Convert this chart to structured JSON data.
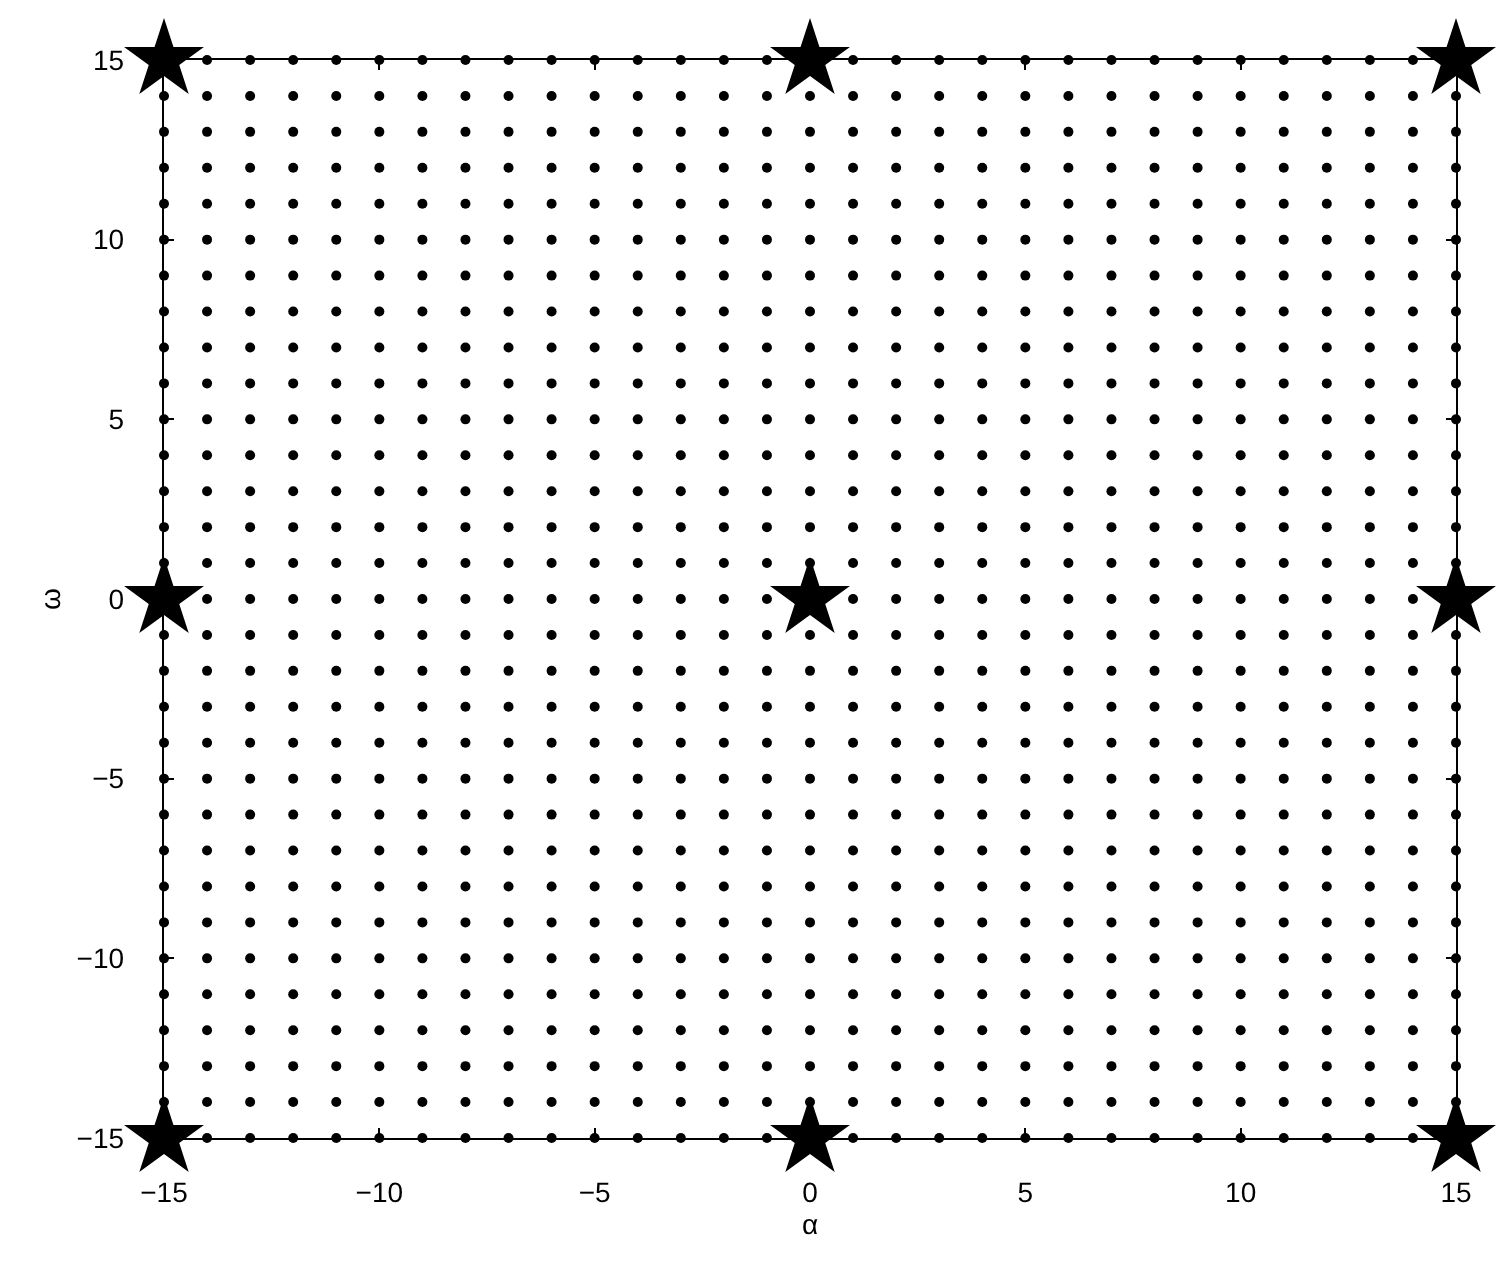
{
  "chart_data": {
    "type": "scatter",
    "xlabel": "α",
    "ylabel": "ω",
    "xlim": [
      -15,
      15
    ],
    "ylim": [
      -15,
      15
    ],
    "xticks": [
      -15,
      -10,
      -5,
      0,
      5,
      10,
      15
    ],
    "yticks": [
      -15,
      -10,
      -5,
      0,
      5,
      10,
      15
    ],
    "series": [
      {
        "marker": "circle",
        "color": "#000000",
        "x": [
          null,
          -14,
          -13,
          -12,
          -11,
          -10,
          -9,
          -8,
          -7,
          -6,
          -5,
          -4,
          -3,
          -2,
          -1,
          null,
          1,
          2,
          3,
          4,
          5,
          6,
          7,
          8,
          9,
          10,
          11,
          12,
          13,
          14,
          null,
          -15,
          -14,
          -13,
          -12,
          -11,
          -10,
          -9,
          -8,
          -7,
          -6,
          -5,
          -4,
          -3,
          -2,
          -1,
          0,
          1,
          2,
          3,
          4,
          5,
          6,
          7,
          8,
          9,
          10,
          11,
          12,
          13,
          14,
          15,
          -15,
          -14,
          -13,
          -12,
          -11,
          -10,
          -9,
          -8,
          -7,
          -6,
          -5,
          -4,
          -3,
          -2,
          -1,
          0,
          1,
          2,
          3,
          4,
          5,
          6,
          7,
          8,
          9,
          10,
          11,
          12,
          13,
          14,
          15,
          -15,
          -14,
          -13,
          -12,
          -11,
          -10,
          -9,
          -8,
          -7,
          -6,
          -5,
          -4,
          -3,
          -2,
          -1,
          0,
          1,
          2,
          3,
          4,
          5,
          6,
          7,
          8,
          9,
          10,
          11,
          12,
          13,
          14,
          15,
          -15,
          -14,
          -13,
          -12,
          -11,
          -10,
          -9,
          -8,
          -7,
          -6,
          -5,
          -4,
          -3,
          -2,
          -1,
          0,
          1,
          2,
          3,
          4,
          5,
          6,
          7,
          8,
          9,
          10,
          11,
          12,
          13,
          14,
          15,
          -15,
          -14,
          -13,
          -12,
          -11,
          -10,
          -9,
          -8,
          -7,
          -6,
          -5,
          -4,
          -3,
          -2,
          -1,
          0,
          1,
          2,
          3,
          4,
          5,
          6,
          7,
          8,
          9,
          10,
          11,
          12,
          13,
          14,
          15,
          -15,
          -14,
          -13,
          -12,
          -11,
          -10,
          -9,
          -8,
          -7,
          -6,
          -5,
          -4,
          -3,
          -2,
          -1,
          0,
          1,
          2,
          3,
          4,
          5,
          6,
          7,
          8,
          9,
          10,
          11,
          12,
          13,
          14,
          15,
          -15,
          -14,
          -13,
          -12,
          -11,
          -10,
          -9,
          -8,
          -7,
          -6,
          -5,
          -4,
          -3,
          -2,
          -1,
          0,
          1,
          2,
          3,
          4,
          5,
          6,
          7,
          8,
          9,
          10,
          11,
          12,
          13,
          14,
          15,
          -15,
          -14,
          -13,
          -12,
          -11,
          -10,
          -9,
          -8,
          -7,
          -6,
          -5,
          -4,
          -3,
          -2,
          -1,
          0,
          1,
          2,
          3,
          4,
          5,
          6,
          7,
          8,
          9,
          10,
          11,
          12,
          13,
          14,
          15,
          -15,
          -14,
          -13,
          -12,
          -11,
          -10,
          -9,
          -8,
          -7,
          -6,
          -5,
          -4,
          -3,
          -2,
          -1,
          0,
          1,
          2,
          3,
          4,
          5,
          6,
          7,
          8,
          9,
          10,
          11,
          12,
          13,
          14,
          15,
          -15,
          -14,
          -13,
          -12,
          -11,
          -10,
          -9,
          -8,
          -7,
          -6,
          -5,
          -4,
          -3,
          -2,
          -1,
          0,
          1,
          2,
          3,
          4,
          5,
          6,
          7,
          8,
          9,
          10,
          11,
          12,
          13,
          14,
          15,
          -15,
          -14,
          -13,
          -12,
          -11,
          -10,
          -9,
          -8,
          -7,
          -6,
          -5,
          -4,
          -3,
          -2,
          -1,
          0,
          1,
          2,
          3,
          4,
          5,
          6,
          7,
          8,
          9,
          10,
          11,
          12,
          13,
          14,
          15,
          -15,
          -14,
          -13,
          -12,
          -11,
          -10,
          -9,
          -8,
          -7,
          -6,
          -5,
          -4,
          -3,
          -2,
          -1,
          0,
          1,
          2,
          3,
          4,
          5,
          6,
          7,
          8,
          9,
          10,
          11,
          12,
          13,
          14,
          15,
          -15,
          -14,
          -13,
          -12,
          -11,
          -10,
          -9,
          -8,
          -7,
          -6,
          -5,
          -4,
          -3,
          -2,
          -1,
          0,
          1,
          2,
          3,
          4,
          5,
          6,
          7,
          8,
          9,
          10,
          11,
          12,
          13,
          14,
          15,
          -15,
          -14,
          -13,
          -12,
          -11,
          -10,
          -9,
          -8,
          -7,
          -6,
          -5,
          -4,
          -3,
          -2,
          -1,
          0,
          1,
          2,
          3,
          4,
          5,
          6,
          7,
          8,
          9,
          10,
          11,
          12,
          13,
          14,
          15,
          null,
          -14,
          -13,
          -12,
          -11,
          -10,
          -9,
          -8,
          -7,
          -6,
          -5,
          -4,
          -3,
          -2,
          -1,
          null,
          1,
          2,
          3,
          4,
          5,
          6,
          7,
          8,
          9,
          10,
          11,
          12,
          13,
          14,
          null,
          -15,
          -14,
          -13,
          -12,
          -11,
          -10,
          -9,
          -8,
          -7,
          -6,
          -5,
          -4,
          -3,
          -2,
          -1,
          0,
          1,
          2,
          3,
          4,
          5,
          6,
          7,
          8,
          9,
          10,
          11,
          12,
          13,
          14,
          15,
          -15,
          -14,
          -13,
          -12,
          -11,
          -10,
          -9,
          -8,
          -7,
          -6,
          -5,
          -4,
          -3,
          -2,
          -1,
          0,
          1,
          2,
          3,
          4,
          5,
          6,
          7,
          8,
          9,
          10,
          11,
          12,
          13,
          14,
          15,
          -15,
          -14,
          -13,
          -12,
          -11,
          -10,
          -9,
          -8,
          -7,
          -6,
          -5,
          -4,
          -3,
          -2,
          -1,
          0,
          1,
          2,
          3,
          4,
          5,
          6,
          7,
          8,
          9,
          10,
          11,
          12,
          13,
          14,
          15,
          -15,
          -14,
          -13,
          -12,
          -11,
          -10,
          -9,
          -8,
          -7,
          -6,
          -5,
          -4,
          -3,
          -2,
          -1,
          0,
          1,
          2,
          3,
          4,
          5,
          6,
          7,
          8,
          9,
          10,
          11,
          12,
          13,
          14,
          15,
          -15,
          -14,
          -13,
          -12,
          -11,
          -10,
          -9,
          -8,
          -7,
          -6,
          -5,
          -4,
          -3,
          -2,
          -1,
          0,
          1,
          2,
          3,
          4,
          5,
          6,
          7,
          8,
          9,
          10,
          11,
          12,
          13,
          14,
          15,
          -15,
          -14,
          -13,
          -12,
          -11,
          -10,
          -9,
          -8,
          -7,
          -6,
          -5,
          -4,
          -3,
          -2,
          -1,
          0,
          1,
          2,
          3,
          4,
          5,
          6,
          7,
          8,
          9,
          10,
          11,
          12,
          13,
          14,
          15,
          -15,
          -14,
          -13,
          -12,
          -11,
          -10,
          -9,
          -8,
          -7,
          -6,
          -5,
          -4,
          -3,
          -2,
          -1,
          0,
          1,
          2,
          3,
          4,
          5,
          6,
          7,
          8,
          9,
          10,
          11,
          12,
          13,
          14,
          15,
          -15,
          -14,
          -13,
          -12,
          -11,
          -10,
          -9,
          -8,
          -7,
          -6,
          -5,
          -4,
          -3,
          -2,
          -1,
          0,
          1,
          2,
          3,
          4,
          5,
          6,
          7,
          8,
          9,
          10,
          11,
          12,
          13,
          14,
          15,
          -15,
          -14,
          -13,
          -12,
          -11,
          -10,
          -9,
          -8,
          -7,
          -6,
          -5,
          -4,
          -3,
          -2,
          -1,
          0,
          1,
          2,
          3,
          4,
          5,
          6,
          7,
          8,
          9,
          10,
          11,
          12,
          13,
          14,
          15,
          -15,
          -14,
          -13,
          -12,
          -11,
          -10,
          -9,
          -8,
          -7,
          -6,
          -5,
          -4,
          -3,
          -2,
          -1,
          0,
          1,
          2,
          3,
          4,
          5,
          6,
          7,
          8,
          9,
          10,
          11,
          12,
          13,
          14,
          15,
          -15,
          -14,
          -13,
          -12,
          -11,
          -10,
          -9,
          -8,
          -7,
          -6,
          -5,
          -4,
          -3,
          -2,
          -1,
          0,
          1,
          2,
          3,
          4,
          5,
          6,
          7,
          8,
          9,
          10,
          11,
          12,
          13,
          14,
          15,
          -15,
          -14,
          -13,
          -12,
          -11,
          -10,
          -9,
          -8,
          -7,
          -6,
          -5,
          -4,
          -3,
          -2,
          -1,
          0,
          1,
          2,
          3,
          4,
          5,
          6,
          7,
          8,
          9,
          10,
          11,
          12,
          13,
          14,
          15,
          -15,
          -14,
          -13,
          -12,
          -11,
          -10,
          -9,
          -8,
          -7,
          -6,
          -5,
          -4,
          -3,
          -2,
          -1,
          0,
          1,
          2,
          3,
          4,
          5,
          6,
          7,
          8,
          9,
          10,
          11,
          12,
          13,
          14,
          15,
          -15,
          -14,
          -13,
          -12,
          -11,
          -10,
          -9,
          -8,
          -7,
          -6,
          -5,
          -4,
          -3,
          -2,
          -1,
          0,
          1,
          2,
          3,
          4,
          5,
          6,
          7,
          8,
          9,
          10,
          11,
          12,
          13,
          14,
          15,
          null,
          -14,
          -13,
          -12,
          -11,
          -10,
          -9,
          -8,
          -7,
          -6,
          -5,
          -4,
          -3,
          -2,
          -1,
          null,
          1,
          2,
          3,
          4,
          5,
          6,
          7,
          8,
          9,
          10,
          11,
          12,
          13,
          14,
          null
        ],
        "values": [
          null,
          15,
          15,
          15,
          15,
          15,
          15,
          15,
          15,
          15,
          15,
          15,
          15,
          15,
          15,
          null,
          15,
          15,
          15,
          15,
          15,
          15,
          15,
          15,
          15,
          15,
          15,
          15,
          15,
          15,
          null,
          14,
          14,
          14,
          14,
          14,
          14,
          14,
          14,
          14,
          14,
          14,
          14,
          14,
          14,
          14,
          14,
          14,
          14,
          14,
          14,
          14,
          14,
          14,
          14,
          14,
          14,
          14,
          14,
          14,
          14,
          14,
          13,
          13,
          13,
          13,
          13,
          13,
          13,
          13,
          13,
          13,
          13,
          13,
          13,
          13,
          13,
          13,
          13,
          13,
          13,
          13,
          13,
          13,
          13,
          13,
          13,
          13,
          13,
          13,
          13,
          13,
          13,
          12,
          12,
          12,
          12,
          12,
          12,
          12,
          12,
          12,
          12,
          12,
          12,
          12,
          12,
          12,
          12,
          12,
          12,
          12,
          12,
          12,
          12,
          12,
          12,
          12,
          12,
          12,
          12,
          12,
          12,
          12,
          11,
          11,
          11,
          11,
          11,
          11,
          11,
          11,
          11,
          11,
          11,
          11,
          11,
          11,
          11,
          11,
          11,
          11,
          11,
          11,
          11,
          11,
          11,
          11,
          11,
          11,
          11,
          11,
          11,
          11,
          11,
          10,
          10,
          10,
          10,
          10,
          10,
          10,
          10,
          10,
          10,
          10,
          10,
          10,
          10,
          10,
          10,
          10,
          10,
          10,
          10,
          10,
          10,
          10,
          10,
          10,
          10,
          10,
          10,
          10,
          10,
          10,
          9,
          9,
          9,
          9,
          9,
          9,
          9,
          9,
          9,
          9,
          9,
          9,
          9,
          9,
          9,
          9,
          9,
          9,
          9,
          9,
          9,
          9,
          9,
          9,
          9,
          9,
          9,
          9,
          9,
          9,
          9,
          8,
          8,
          8,
          8,
          8,
          8,
          8,
          8,
          8,
          8,
          8,
          8,
          8,
          8,
          8,
          8,
          8,
          8,
          8,
          8,
          8,
          8,
          8,
          8,
          8,
          8,
          8,
          8,
          8,
          8,
          8,
          7,
          7,
          7,
          7,
          7,
          7,
          7,
          7,
          7,
          7,
          7,
          7,
          7,
          7,
          7,
          7,
          7,
          7,
          7,
          7,
          7,
          7,
          7,
          7,
          7,
          7,
          7,
          7,
          7,
          7,
          7,
          6,
          6,
          6,
          6,
          6,
          6,
          6,
          6,
          6,
          6,
          6,
          6,
          6,
          6,
          6,
          6,
          6,
          6,
          6,
          6,
          6,
          6,
          6,
          6,
          6,
          6,
          6,
          6,
          6,
          6,
          6,
          5,
          5,
          5,
          5,
          5,
          5,
          5,
          5,
          5,
          5,
          5,
          5,
          5,
          5,
          5,
          5,
          5,
          5,
          5,
          5,
          5,
          5,
          5,
          5,
          5,
          5,
          5,
          5,
          5,
          5,
          5,
          4,
          4,
          4,
          4,
          4,
          4,
          4,
          4,
          4,
          4,
          4,
          4,
          4,
          4,
          4,
          4,
          4,
          4,
          4,
          4,
          4,
          4,
          4,
          4,
          4,
          4,
          4,
          4,
          4,
          4,
          4,
          3,
          3,
          3,
          3,
          3,
          3,
          3,
          3,
          3,
          3,
          3,
          3,
          3,
          3,
          3,
          3,
          3,
          3,
          3,
          3,
          3,
          3,
          3,
          3,
          3,
          3,
          3,
          3,
          3,
          3,
          3,
          2,
          2,
          2,
          2,
          2,
          2,
          2,
          2,
          2,
          2,
          2,
          2,
          2,
          2,
          2,
          2,
          2,
          2,
          2,
          2,
          2,
          2,
          2,
          2,
          2,
          2,
          2,
          2,
          2,
          2,
          2,
          1,
          1,
          1,
          1,
          1,
          1,
          1,
          1,
          1,
          1,
          1,
          1,
          1,
          1,
          1,
          1,
          1,
          1,
          1,
          1,
          1,
          1,
          1,
          1,
          1,
          1,
          1,
          1,
          1,
          1,
          1,
          null,
          0,
          0,
          0,
          0,
          0,
          0,
          0,
          0,
          0,
          0,
          0,
          0,
          0,
          0,
          null,
          0,
          0,
          0,
          0,
          0,
          0,
          0,
          0,
          0,
          0,
          0,
          0,
          0,
          0,
          null,
          -1,
          -1,
          -1,
          -1,
          -1,
          -1,
          -1,
          -1,
          -1,
          -1,
          -1,
          -1,
          -1,
          -1,
          -1,
          -1,
          -1,
          -1,
          -1,
          -1,
          -1,
          -1,
          -1,
          -1,
          -1,
          -1,
          -1,
          -1,
          -1,
          -1,
          -1,
          -2,
          -2,
          -2,
          -2,
          -2,
          -2,
          -2,
          -2,
          -2,
          -2,
          -2,
          -2,
          -2,
          -2,
          -2,
          -2,
          -2,
          -2,
          -2,
          -2,
          -2,
          -2,
          -2,
          -2,
          -2,
          -2,
          -2,
          -2,
          -2,
          -2,
          -2,
          -3,
          -3,
          -3,
          -3,
          -3,
          -3,
          -3,
          -3,
          -3,
          -3,
          -3,
          -3,
          -3,
          -3,
          -3,
          -3,
          -3,
          -3,
          -3,
          -3,
          -3,
          -3,
          -3,
          -3,
          -3,
          -3,
          -3,
          -3,
          -3,
          -3,
          -3,
          -4,
          -4,
          -4,
          -4,
          -4,
          -4,
          -4,
          -4,
          -4,
          -4,
          -4,
          -4,
          -4,
          -4,
          -4,
          -4,
          -4,
          -4,
          -4,
          -4,
          -4,
          -4,
          -4,
          -4,
          -4,
          -4,
          -4,
          -4,
          -4,
          -4,
          -4,
          -5,
          -5,
          -5,
          -5,
          -5,
          -5,
          -5,
          -5,
          -5,
          -5,
          -5,
          -5,
          -5,
          -5,
          -5,
          -5,
          -5,
          -5,
          -5,
          -5,
          -5,
          -5,
          -5,
          -5,
          -5,
          -5,
          -5,
          -5,
          -5,
          -5,
          -5,
          -6,
          -6,
          -6,
          -6,
          -6,
          -6,
          -6,
          -6,
          -6,
          -6,
          -6,
          -6,
          -6,
          -6,
          -6,
          -6,
          -6,
          -6,
          -6,
          -6,
          -6,
          -6,
          -6,
          -6,
          -6,
          -6,
          -6,
          -6,
          -6,
          -6,
          -6,
          -7,
          -7,
          -7,
          -7,
          -7,
          -7,
          -7,
          -7,
          -7,
          -7,
          -7,
          -7,
          -7,
          -7,
          -7,
          -7,
          -7,
          -7,
          -7,
          -7,
          -7,
          -7,
          -7,
          -7,
          -7,
          -7,
          -7,
          -7,
          -7,
          -7,
          -7,
          -8,
          -8,
          -8,
          -8,
          -8,
          -8,
          -8,
          -8,
          -8,
          -8,
          -8,
          -8,
          -8,
          -8,
          -8,
          -8,
          -8,
          -8,
          -8,
          -8,
          -8,
          -8,
          -8,
          -8,
          -8,
          -8,
          -8,
          -8,
          -8,
          -8,
          -8,
          -9,
          -9,
          -9,
          -9,
          -9,
          -9,
          -9,
          -9,
          -9,
          -9,
          -9,
          -9,
          -9,
          -9,
          -9,
          -9,
          -9,
          -9,
          -9,
          -9,
          -9,
          -9,
          -9,
          -9,
          -9,
          -9,
          -9,
          -9,
          -9,
          -9,
          -9,
          -10,
          -10,
          -10,
          -10,
          -10,
          -10,
          -10,
          -10,
          -10,
          -10,
          -10,
          -10,
          -10,
          -10,
          -10,
          -10,
          -10,
          -10,
          -10,
          -10,
          -10,
          -10,
          -10,
          -10,
          -10,
          -10,
          -10,
          -10,
          -10,
          -10,
          -10,
          -11,
          -11,
          -11,
          -11,
          -11,
          -11,
          -11,
          -11,
          -11,
          -11,
          -11,
          -11,
          -11,
          -11,
          -11,
          -11,
          -11,
          -11,
          -11,
          -11,
          -11,
          -11,
          -11,
          -11,
          -11,
          -11,
          -11,
          -11,
          -11,
          -11,
          -11,
          -12,
          -12,
          -12,
          -12,
          -12,
          -12,
          -12,
          -12,
          -12,
          -12,
          -12,
          -12,
          -12,
          -12,
          -12,
          -12,
          -12,
          -12,
          -12,
          -12,
          -12,
          -12,
          -12,
          -12,
          -12,
          -12,
          -12,
          -12,
          -12,
          -12,
          -12,
          -13,
          -13,
          -13,
          -13,
          -13,
          -13,
          -13,
          -13,
          -13,
          -13,
          -13,
          -13,
          -13,
          -13,
          -13,
          -13,
          -13,
          -13,
          -13,
          -13,
          -13,
          -13,
          -13,
          -13,
          -13,
          -13,
          -13,
          -13,
          -13,
          -13,
          -13,
          -14,
          -14,
          -14,
          -14,
          -14,
          -14,
          -14,
          -14,
          -14,
          -14,
          -14,
          -14,
          -14,
          -14,
          -14,
          -14,
          -14,
          -14,
          -14,
          -14,
          -14,
          -14,
          -14,
          -14,
          -14,
          -14,
          -14,
          -14,
          -14,
          -14,
          -14,
          null,
          -15,
          -15,
          -15,
          -15,
          -15,
          -15,
          -15,
          -15,
          -15,
          -15,
          -15,
          -15,
          -15,
          -15,
          null,
          -15,
          -15,
          -15,
          -15,
          -15,
          -15,
          -15,
          -15,
          -15,
          -15,
          -15,
          -15,
          -15,
          -15,
          null
        ]
      },
      {
        "marker": "star",
        "color": "#000000",
        "x": [
          -15,
          0,
          15,
          -15,
          0,
          15,
          -15,
          0,
          15
        ],
        "values": [
          15,
          15,
          15,
          0,
          0,
          0,
          -15,
          -15,
          -15
        ]
      }
    ]
  }
}
